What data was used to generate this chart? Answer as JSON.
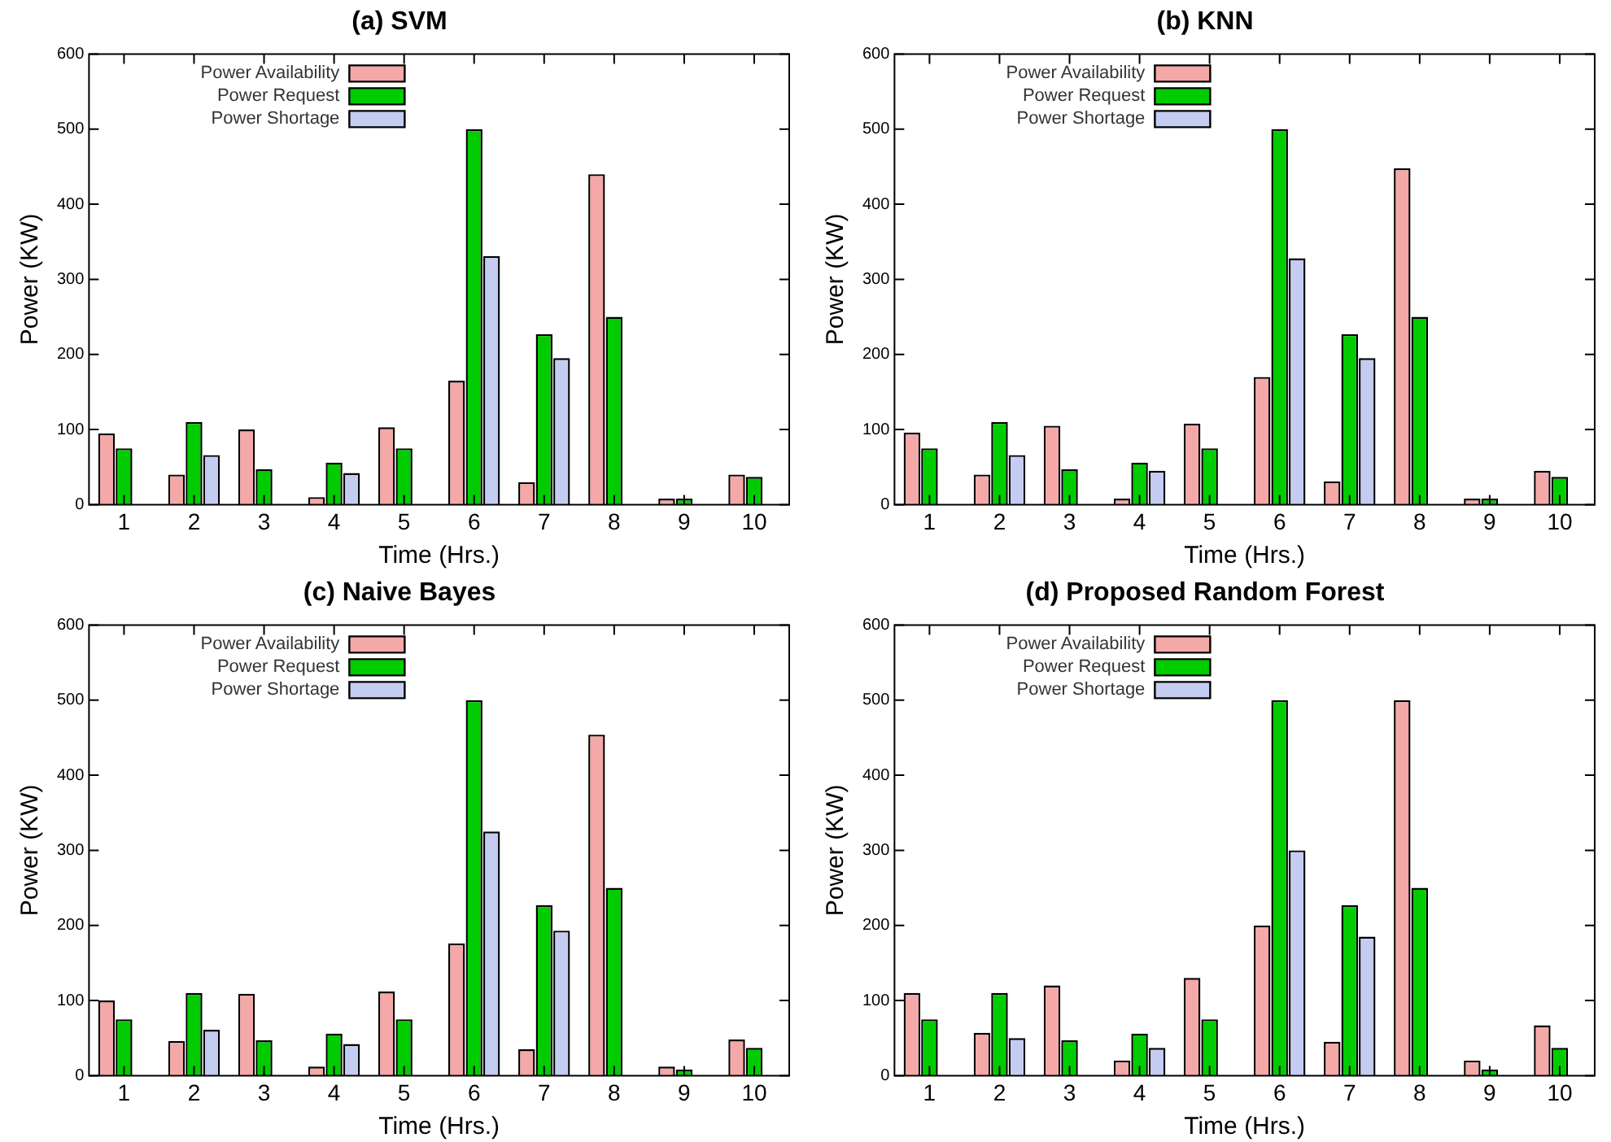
{
  "chart_data": [
    {
      "type": "bar",
      "title": "(a) SVM",
      "xlabel": "Time (Hrs.)",
      "ylabel": "Power (KW)",
      "categories": [
        "1",
        "2",
        "3",
        "4",
        "5",
        "6",
        "7",
        "8",
        "9",
        "10"
      ],
      "series": [
        {
          "name": "Power Availability",
          "color": "#f4a8a8",
          "values": [
            95,
            40,
            100,
            10,
            103,
            165,
            30,
            440,
            8,
            40
          ]
        },
        {
          "name": "Power Request",
          "color": "#00cc00",
          "values": [
            75,
            110,
            47,
            56,
            75,
            500,
            227,
            250,
            8,
            37
          ]
        },
        {
          "name": "Power Shortage",
          "color": "#c4ccf2",
          "values": [
            0,
            66,
            0,
            42,
            0,
            331,
            195,
            0,
            0,
            0
          ]
        }
      ],
      "ylim": [
        0,
        600
      ],
      "yticks": [
        0,
        100,
        200,
        300,
        400,
        500,
        600
      ],
      "grid": false,
      "legend": "top left"
    },
    {
      "type": "bar",
      "title": "(b) KNN",
      "xlabel": "Time (Hrs.)",
      "ylabel": "Power (KW)",
      "categories": [
        "1",
        "2",
        "3",
        "4",
        "5",
        "6",
        "7",
        "8",
        "9",
        "10"
      ],
      "series": [
        {
          "name": "Power Availability",
          "color": "#f4a8a8",
          "values": [
            96,
            40,
            105,
            8,
            108,
            170,
            31,
            448,
            8,
            45
          ]
        },
        {
          "name": "Power Request",
          "color": "#00cc00",
          "values": [
            75,
            110,
            47,
            56,
            75,
            500,
            227,
            250,
            8,
            37
          ]
        },
        {
          "name": "Power Shortage",
          "color": "#c4ccf2",
          "values": [
            0,
            66,
            0,
            45,
            0,
            328,
            195,
            0,
            0,
            0
          ]
        }
      ],
      "ylim": [
        0,
        600
      ],
      "yticks": [
        0,
        100,
        200,
        300,
        400,
        500,
        600
      ],
      "grid": false,
      "legend": "top left"
    },
    {
      "type": "bar",
      "title": "(c) Naive Bayes",
      "xlabel": "Time (Hrs.)",
      "ylabel": "Power (KW)",
      "categories": [
        "1",
        "2",
        "3",
        "4",
        "5",
        "6",
        "7",
        "8",
        "9",
        "10"
      ],
      "series": [
        {
          "name": "Power Availability",
          "color": "#f4a8a8",
          "values": [
            100,
            46,
            109,
            12,
            112,
            176,
            35,
            454,
            12,
            48
          ]
        },
        {
          "name": "Power Request",
          "color": "#00cc00",
          "values": [
            75,
            110,
            47,
            56,
            75,
            500,
            227,
            250,
            8,
            37
          ]
        },
        {
          "name": "Power Shortage",
          "color": "#c4ccf2",
          "values": [
            0,
            61,
            0,
            42,
            0,
            325,
            193,
            0,
            0,
            0
          ]
        }
      ],
      "ylim": [
        0,
        600
      ],
      "yticks": [
        0,
        100,
        200,
        300,
        400,
        500,
        600
      ],
      "grid": false,
      "legend": "top left"
    },
    {
      "type": "bar",
      "title": "(d) Proposed Random Forest",
      "xlabel": "Time (Hrs.)",
      "ylabel": "Power (KW)",
      "categories": [
        "1",
        "2",
        "3",
        "4",
        "5",
        "6",
        "7",
        "8",
        "9",
        "10"
      ],
      "series": [
        {
          "name": "Power Availability",
          "color": "#f4a8a8",
          "values": [
            110,
            57,
            120,
            20,
            130,
            200,
            45,
            500,
            20,
            67
          ]
        },
        {
          "name": "Power Request",
          "color": "#00cc00",
          "values": [
            75,
            110,
            47,
            56,
            75,
            500,
            227,
            250,
            8,
            37
          ]
        },
        {
          "name": "Power Shortage",
          "color": "#c4ccf2",
          "values": [
            0,
            50,
            0,
            37,
            0,
            300,
            185,
            0,
            0,
            0
          ]
        }
      ],
      "ylim": [
        0,
        600
      ],
      "yticks": [
        0,
        100,
        200,
        300,
        400,
        500,
        600
      ],
      "grid": false,
      "legend": "top left"
    }
  ]
}
